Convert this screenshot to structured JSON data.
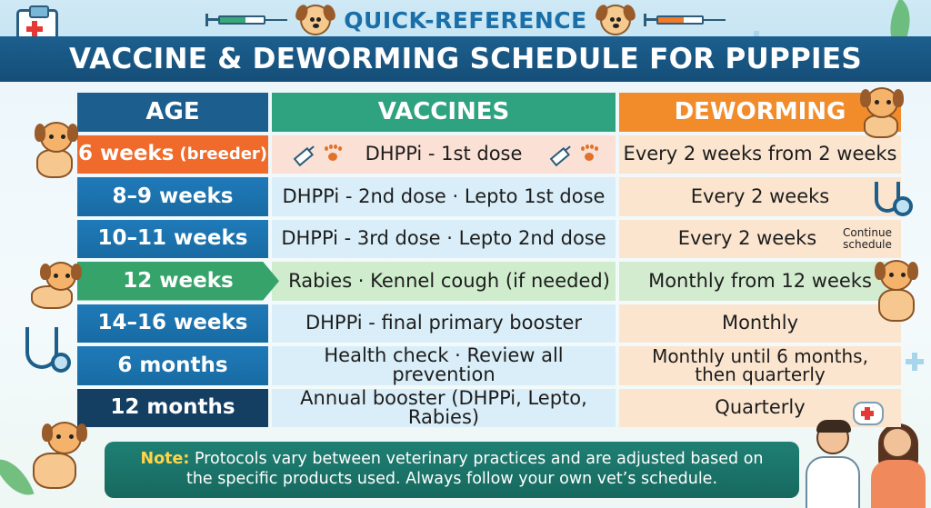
{
  "header": {
    "kicker": "QUICK-REFERENCE",
    "title": "VACCINE & DEWORMING SCHEDULE FOR PUPPIES"
  },
  "table": {
    "columns": [
      "AGE",
      "VACCINES",
      "DEWORMING"
    ],
    "rows": [
      {
        "age": "6 weeks",
        "age_note": "(breeder)",
        "vaccines": "DHPPi - 1st dose",
        "deworming": "Every 2 weeks from 2 weeks"
      },
      {
        "age": "8–9 weeks",
        "vaccines": "DHPPi - 2nd dose · Lepto 1st dose",
        "deworming": "Every 2 weeks"
      },
      {
        "age": "10–11 weeks",
        "vaccines": "DHPPi - 3rd dose · Lepto 2nd dose",
        "deworming": "Every 2 weeks",
        "deworming_note": "Continue schedule"
      },
      {
        "age": "12 weeks",
        "vaccines": "Rabies · Kennel cough (if needed)",
        "deworming": "Monthly from 12 weeks"
      },
      {
        "age": "14–16 weeks",
        "vaccines": "DHPPi - final primary booster",
        "deworming": "Monthly"
      },
      {
        "age": "6 months",
        "vaccines": "Health check · Review all prevention",
        "deworming_line1": "Monthly until 6 months,",
        "deworming_line2": "then quarterly"
      },
      {
        "age": "12 months",
        "vaccines": "Annual booster (DHPPi, Lepto, Rabies)",
        "deworming": "Quarterly"
      }
    ]
  },
  "note": {
    "label": "Note:",
    "line1": "Protocols vary between veterinary practices and are adjusted based on",
    "line2": "the specific products used. Always follow your own vet’s schedule."
  },
  "colors": {
    "title_bar": "#1c5f8e",
    "age_header": "#1c5f8e",
    "vaccines_header": "#2fa37f",
    "deworming_header": "#f28c2b",
    "note_bg": "#1f7f73",
    "note_label": "#ffd54a"
  },
  "icons": [
    "clipboard-icon",
    "syringe-icon",
    "puppy-icon",
    "paw-icon",
    "stethoscope-icon",
    "leaf-icon",
    "plus-icon",
    "vet-illustration"
  ]
}
